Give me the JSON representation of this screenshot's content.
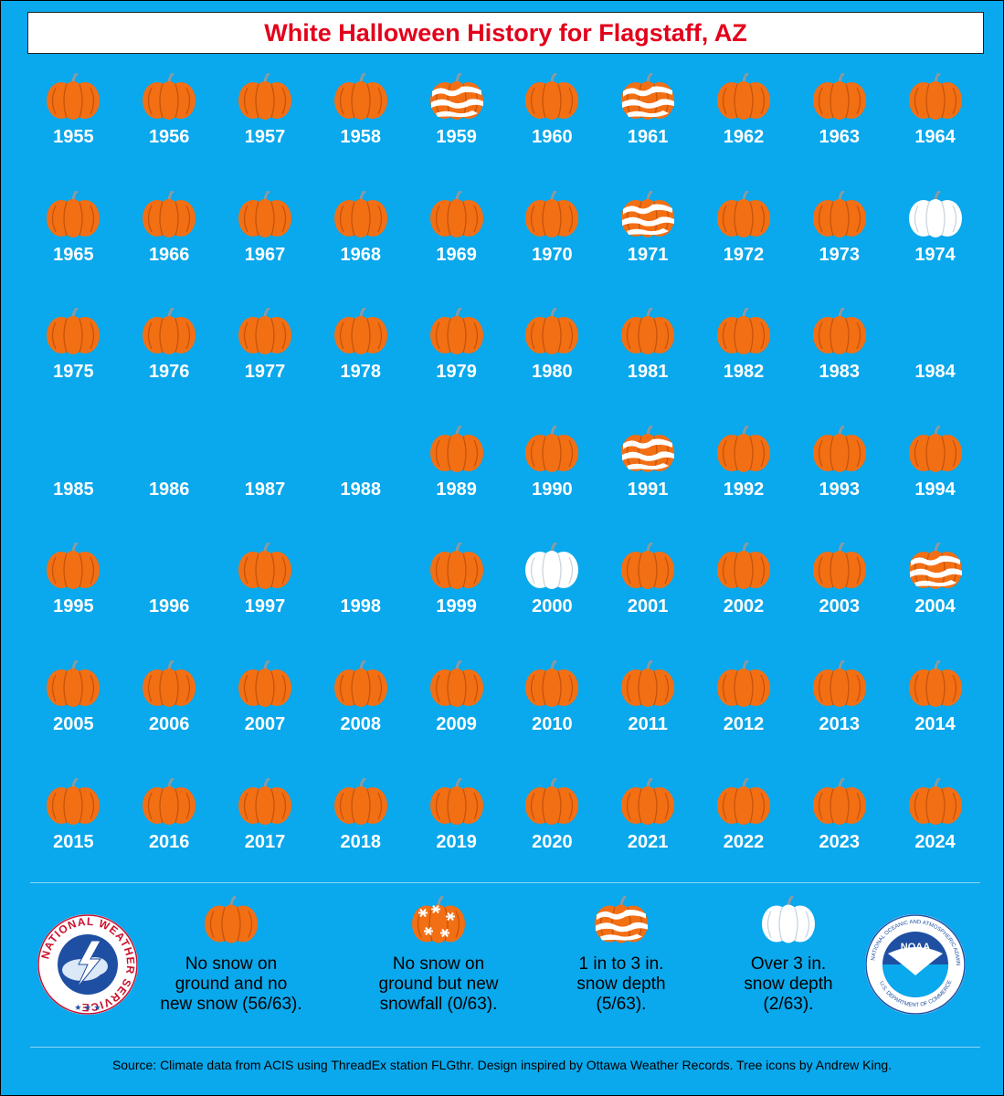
{
  "title": "White Halloween History for Flagstaff, AZ",
  "colors": {
    "background": "#0aa8ec",
    "title_text": "#e3001b",
    "pumpkin": "#f36f14",
    "snow": "#ffffff"
  },
  "years": [
    {
      "year": "1955",
      "status": "none"
    },
    {
      "year": "1956",
      "status": "none"
    },
    {
      "year": "1957",
      "status": "none"
    },
    {
      "year": "1958",
      "status": "none"
    },
    {
      "year": "1959",
      "status": "depth_1_3"
    },
    {
      "year": "1960",
      "status": "none"
    },
    {
      "year": "1961",
      "status": "depth_1_3"
    },
    {
      "year": "1962",
      "status": "none"
    },
    {
      "year": "1963",
      "status": "none"
    },
    {
      "year": "1964",
      "status": "none"
    },
    {
      "year": "1965",
      "status": "none"
    },
    {
      "year": "1966",
      "status": "none"
    },
    {
      "year": "1967",
      "status": "none"
    },
    {
      "year": "1968",
      "status": "none"
    },
    {
      "year": "1969",
      "status": "none"
    },
    {
      "year": "1970",
      "status": "none"
    },
    {
      "year": "1971",
      "status": "depth_1_3"
    },
    {
      "year": "1972",
      "status": "none"
    },
    {
      "year": "1973",
      "status": "none"
    },
    {
      "year": "1974",
      "status": "depth_over_3"
    },
    {
      "year": "1975",
      "status": "none"
    },
    {
      "year": "1976",
      "status": "none"
    },
    {
      "year": "1977",
      "status": "none"
    },
    {
      "year": "1978",
      "status": "none"
    },
    {
      "year": "1979",
      "status": "none"
    },
    {
      "year": "1980",
      "status": "none"
    },
    {
      "year": "1981",
      "status": "none"
    },
    {
      "year": "1982",
      "status": "none"
    },
    {
      "year": "1983",
      "status": "none"
    },
    {
      "year": "1984",
      "status": "missing"
    },
    {
      "year": "1985",
      "status": "missing"
    },
    {
      "year": "1986",
      "status": "missing"
    },
    {
      "year": "1987",
      "status": "missing"
    },
    {
      "year": "1988",
      "status": "missing"
    },
    {
      "year": "1989",
      "status": "none"
    },
    {
      "year": "1990",
      "status": "none"
    },
    {
      "year": "1991",
      "status": "depth_1_3"
    },
    {
      "year": "1992",
      "status": "none"
    },
    {
      "year": "1993",
      "status": "none"
    },
    {
      "year": "1994",
      "status": "none"
    },
    {
      "year": "1995",
      "status": "none"
    },
    {
      "year": "1996",
      "status": "missing"
    },
    {
      "year": "1997",
      "status": "none"
    },
    {
      "year": "1998",
      "status": "missing"
    },
    {
      "year": "1999",
      "status": "none"
    },
    {
      "year": "2000",
      "status": "depth_over_3"
    },
    {
      "year": "2001",
      "status": "none"
    },
    {
      "year": "2002",
      "status": "none"
    },
    {
      "year": "2003",
      "status": "none"
    },
    {
      "year": "2004",
      "status": "depth_1_3"
    },
    {
      "year": "2005",
      "status": "none"
    },
    {
      "year": "2006",
      "status": "none"
    },
    {
      "year": "2007",
      "status": "none"
    },
    {
      "year": "2008",
      "status": "none"
    },
    {
      "year": "2009",
      "status": "none"
    },
    {
      "year": "2010",
      "status": "none"
    },
    {
      "year": "2011",
      "status": "none"
    },
    {
      "year": "2012",
      "status": "none"
    },
    {
      "year": "2013",
      "status": "none"
    },
    {
      "year": "2014",
      "status": "none"
    },
    {
      "year": "2015",
      "status": "none"
    },
    {
      "year": "2016",
      "status": "none"
    },
    {
      "year": "2017",
      "status": "none"
    },
    {
      "year": "2018",
      "status": "none"
    },
    {
      "year": "2019",
      "status": "none"
    },
    {
      "year": "2020",
      "status": "none"
    },
    {
      "year": "2021",
      "status": "none"
    },
    {
      "year": "2022",
      "status": "none"
    },
    {
      "year": "2023",
      "status": "none"
    },
    {
      "year": "2024",
      "status": "none"
    }
  ],
  "legend": [
    {
      "status": "none",
      "line1": "No snow on",
      "line2": "ground and no",
      "line3": "new snow (56/63)."
    },
    {
      "status": "new_snow",
      "line1": "No snow on",
      "line2": "ground but new",
      "line3": "snowfall (0/63)."
    },
    {
      "status": "depth_1_3",
      "line1": "1 in to 3 in.",
      "line2": "snow depth",
      "line3": "(5/63)."
    },
    {
      "status": "depth_over_3",
      "line1": "Over 3 in.",
      "line2": "snow depth",
      "line3": "(2/63)."
    }
  ],
  "logos": {
    "nws_text": "NATIONAL WEATHER SERVICE",
    "noaa_text": "NOAA",
    "noaa_ring_text": "NATIONAL OCEANIC AND ATMOSPHERIC ADMINISTRATION",
    "noaa_ring_bottom": "U.S. DEPARTMENT OF COMMERCE"
  },
  "source": "Source: Climate data from ACIS using ThreadEx station FLGthr. Design inspired by Ottawa Weather Records. Tree icons by Andrew King."
}
